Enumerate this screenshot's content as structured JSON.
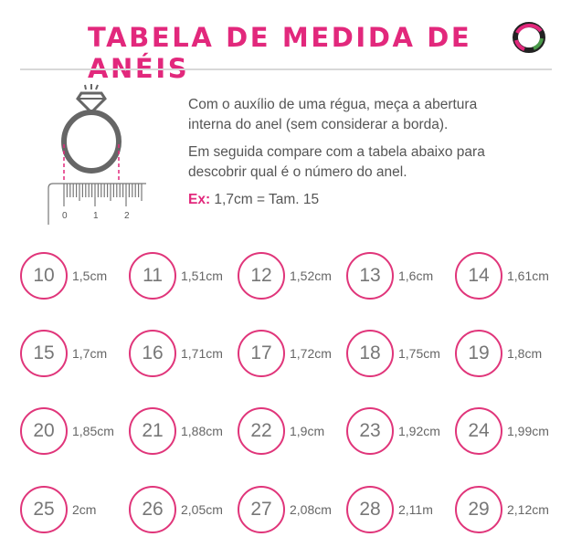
{
  "header": {
    "title": "TABELA DE MEDIDA DE ANÉIS",
    "logo": "ring-logo"
  },
  "instructions": {
    "p1": "Com o auxílio de uma régua, meça a abertura interna do anel (sem considerar a borda).",
    "p2": "Em seguida compare com a tabela abaixo para descobrir qual é o número do anel.",
    "ex_label": "Ex:",
    "ex_text": " 1,7cm = Tam. 15"
  },
  "ruler": {
    "labels": [
      "0",
      "1",
      "2"
    ]
  },
  "colors": {
    "accent": "#e2287c",
    "text": "#555555"
  },
  "sizes": [
    {
      "number": "10",
      "measure": "1,5cm"
    },
    {
      "number": "11",
      "measure": "1,51cm"
    },
    {
      "number": "12",
      "measure": "1,52cm"
    },
    {
      "number": "13",
      "measure": "1,6cm"
    },
    {
      "number": "14",
      "measure": "1,61cm"
    },
    {
      "number": "15",
      "measure": "1,7cm"
    },
    {
      "number": "16",
      "measure": "1,71cm"
    },
    {
      "number": "17",
      "measure": "1,72cm"
    },
    {
      "number": "18",
      "measure": "1,75cm"
    },
    {
      "number": "19",
      "measure": "1,8cm"
    },
    {
      "number": "20",
      "measure": "1,85cm"
    },
    {
      "number": "21",
      "measure": "1,88cm"
    },
    {
      "number": "22",
      "measure": "1,9cm"
    },
    {
      "number": "23",
      "measure": "1,92cm"
    },
    {
      "number": "24",
      "measure": "1,99cm"
    },
    {
      "number": "25",
      "measure": "2cm"
    },
    {
      "number": "26",
      "measure": "2,05cm"
    },
    {
      "number": "27",
      "measure": "2,08cm"
    },
    {
      "number": "28",
      "measure": "2,11m"
    },
    {
      "number": "29",
      "measure": "2,12cm"
    }
  ]
}
